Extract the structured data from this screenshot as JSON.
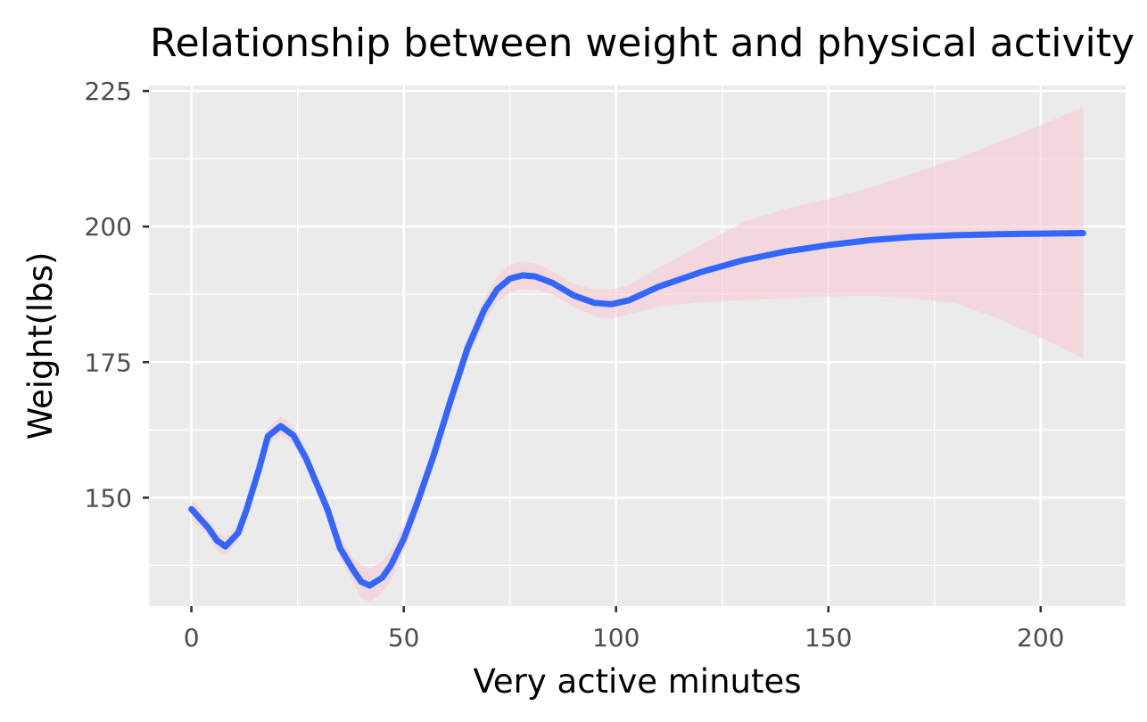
{
  "chart_data": {
    "type": "line",
    "title": "Relationship between weight and physical activity",
    "xlabel": "Very active minutes",
    "ylabel": "Weight(lbs)",
    "xlim": [
      -10,
      220
    ],
    "ylim": [
      130,
      226
    ],
    "x_ticks": [
      0,
      50,
      100,
      150,
      200
    ],
    "y_ticks": [
      150,
      175,
      200,
      225
    ],
    "grid": true,
    "legend": "none",
    "colors": {
      "line": "#3366ff",
      "ribbon": "#f7c8d2",
      "panel": "#ebebeb"
    },
    "series": [
      {
        "x": [
          0,
          4,
          6,
          8,
          11,
          13,
          16,
          18,
          21,
          24,
          27,
          32,
          35,
          38,
          40,
          42,
          45,
          47,
          50,
          53,
          57,
          61,
          65,
          69,
          72,
          75,
          78,
          81,
          85,
          90,
          95,
          99,
          103,
          110,
          120,
          130,
          140,
          150,
          160,
          170,
          180,
          190,
          200,
          210
        ],
        "y": [
          147.9,
          144.4,
          142.1,
          141.0,
          143.5,
          147.8,
          155.5,
          161.3,
          163.2,
          161.5,
          157.2,
          147.9,
          140.7,
          136.8,
          134.5,
          133.8,
          135.3,
          137.6,
          142.4,
          148.6,
          157.7,
          167.8,
          177.5,
          184.7,
          188.4,
          190.4,
          191.0,
          190.8,
          189.6,
          187.3,
          185.9,
          185.7,
          186.4,
          188.9,
          191.6,
          193.8,
          195.4,
          196.6,
          197.5,
          198.1,
          198.4,
          198.6,
          198.7,
          198.8
        ],
        "lower": [
          146.0,
          143.0,
          140.3,
          139.3,
          142.0,
          146.3,
          154.0,
          159.8,
          161.5,
          159.9,
          155.6,
          146.2,
          138.7,
          134.7,
          131.5,
          130.7,
          132.5,
          134.8,
          140.0,
          146.6,
          155.7,
          165.8,
          175.5,
          182.5,
          186.0,
          187.8,
          188.5,
          188.4,
          187.5,
          185.2,
          183.4,
          183.0,
          183.8,
          185.2,
          186.0,
          186.4,
          186.8,
          187.1,
          187.2,
          186.8,
          185.8,
          183.0,
          179.5,
          175.7
        ],
        "upper": [
          149.8,
          146.0,
          143.8,
          142.7,
          145.0,
          149.4,
          157.0,
          162.8,
          165.0,
          163.1,
          158.9,
          149.6,
          142.8,
          139.0,
          137.5,
          137.0,
          138.2,
          140.4,
          144.9,
          150.6,
          159.6,
          169.7,
          179.5,
          186.8,
          190.8,
          193.0,
          193.5,
          193.2,
          191.8,
          189.4,
          188.4,
          188.4,
          189.2,
          192.4,
          196.6,
          200.8,
          203.3,
          205.1,
          207.2,
          209.8,
          212.5,
          215.5,
          218.7,
          222.0
        ]
      }
    ]
  }
}
